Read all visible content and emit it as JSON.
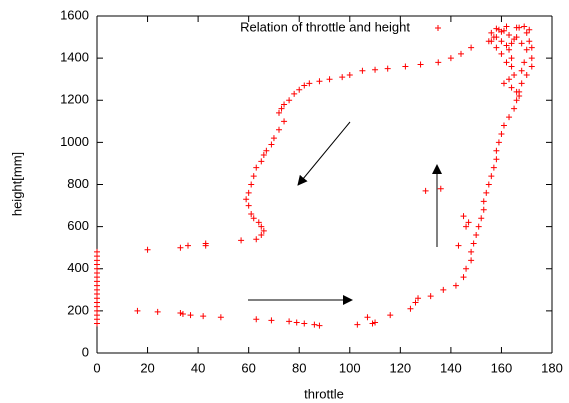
{
  "chart_data": {
    "type": "scatter",
    "xlabel": "throttle",
    "ylabel": "height[mm]",
    "xlim": [
      0,
      180
    ],
    "ylim": [
      0,
      1600
    ],
    "xticks": [
      0,
      20,
      40,
      60,
      80,
      100,
      120,
      140,
      160,
      180
    ],
    "yticks": [
      0,
      200,
      400,
      600,
      800,
      1000,
      1200,
      1400,
      1600
    ],
    "legend": "top-right",
    "series": [
      {
        "name": "Relation of throttle and height",
        "color": "#ff0000",
        "x": [
          0,
          0,
          0,
          0,
          0,
          0,
          0,
          0,
          0,
          0,
          0,
          0,
          0,
          0,
          0,
          0,
          0,
          0,
          16,
          24,
          33,
          34,
          37,
          42,
          49,
          63,
          69,
          76,
          79,
          82,
          86,
          88,
          103,
          107,
          109,
          110,
          116,
          124,
          126,
          127,
          132,
          137,
          142,
          145,
          146,
          148,
          148,
          149,
          150,
          151,
          152,
          153,
          153,
          154,
          155,
          156,
          157,
          158,
          158,
          159,
          160,
          161,
          163,
          165,
          166,
          167,
          168,
          170,
          172,
          172,
          172,
          171,
          170,
          166,
          162,
          158,
          156,
          158,
          160,
          162,
          163,
          164,
          164,
          165,
          163,
          161,
          164,
          166,
          167,
          162,
          160,
          158,
          156,
          166,
          168,
          170,
          169,
          168,
          161,
          163,
          165,
          167,
          169,
          171,
          164,
          160,
          157,
          159,
          130,
          136,
          145,
          147,
          143,
          146,
          155,
          148,
          144,
          140,
          135,
          128,
          122,
          115,
          110,
          105,
          100,
          97,
          92,
          88,
          84,
          82,
          80,
          78,
          76,
          74,
          73,
          72,
          74,
          72,
          70,
          69,
          67,
          66,
          65,
          63,
          62,
          61,
          60,
          59,
          60,
          61,
          62,
          64,
          65,
          66,
          65,
          63,
          57,
          43,
          43,
          36,
          33,
          20
        ],
        "y": [
          140,
          160,
          180,
          200,
          220,
          240,
          260,
          280,
          300,
          320,
          340,
          360,
          380,
          400,
          420,
          440,
          460,
          480,
          200,
          195,
          190,
          185,
          180,
          175,
          170,
          160,
          155,
          150,
          145,
          140,
          135,
          130,
          135,
          170,
          140,
          145,
          180,
          210,
          240,
          260,
          270,
          300,
          320,
          360,
          400,
          440,
          480,
          520,
          560,
          600,
          640,
          680,
          720,
          760,
          800,
          840,
          880,
          920,
          960,
          1000,
          1040,
          1080,
          1120,
          1160,
          1200,
          1240,
          1280,
          1320,
          1360,
          1400,
          1450,
          1480,
          1520,
          1545,
          1550,
          1540,
          1520,
          1500,
          1480,
          1460,
          1440,
          1400,
          1360,
          1320,
          1300,
          1280,
          1260,
          1240,
          1220,
          1380,
          1420,
          1450,
          1480,
          1500,
          1470,
          1440,
          1380,
          1340,
          1530,
          1510,
          1490,
          1545,
          1550,
          1535,
          1470,
          1525,
          1500,
          1535,
          770,
          780,
          650,
          620,
          510,
          600,
          1480,
          1450,
          1420,
          1400,
          1380,
          1370,
          1360,
          1350,
          1345,
          1340,
          1320,
          1310,
          1300,
          1290,
          1280,
          1270,
          1250,
          1230,
          1200,
          1180,
          1160,
          1140,
          1100,
          1060,
          1020,
          990,
          960,
          940,
          910,
          880,
          840,
          800,
          760,
          730,
          700,
          660,
          640,
          620,
          600,
          580,
          560,
          540,
          535,
          520,
          510,
          510,
          500,
          490
        ]
      }
    ]
  }
}
